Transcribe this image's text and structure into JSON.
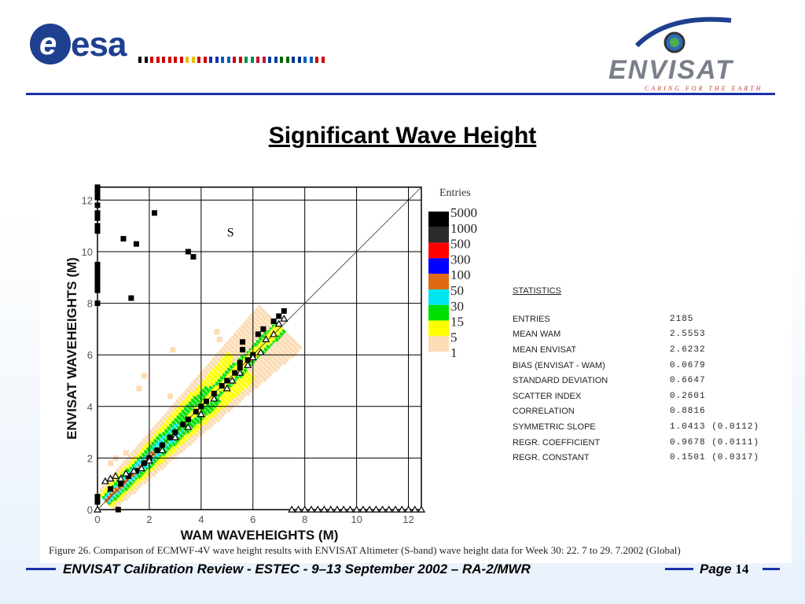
{
  "header": {
    "esa_logo_text": "esa",
    "envisat_logo_text": "ENVISAT",
    "envisat_tagline": "CARING FOR THE EARTH",
    "flags": [
      "#000000",
      "#d00000",
      "#d00000",
      "#d00000",
      "#e8c000",
      "#d00000",
      "#1a2fa8",
      "#0060c0",
      "#d00000",
      "#009246",
      "#c8102e",
      "#003da5",
      "#006600",
      "#003399",
      "#0060c0",
      "#d00000"
    ]
  },
  "title": "Significant Wave Height",
  "chart_data": {
    "type": "heatmap",
    "xlabel": "WAM  WAVEHEIGHTS (M)",
    "ylabel": "ENVISAT  WAVEHEIGHTS (M)",
    "xlim": [
      0,
      12.5
    ],
    "ylim": [
      0,
      12.5
    ],
    "xticks": [
      0,
      2,
      4,
      6,
      8,
      10,
      12
    ],
    "yticks": [
      0,
      2,
      4,
      6,
      8,
      10,
      12
    ],
    "grid": true,
    "annotation": "S",
    "legend_title": "Entries",
    "legend": [
      {
        "label": "5000",
        "color": "#000000"
      },
      {
        "label": "1000",
        "color": "#2b2b2b"
      },
      {
        "label": "500",
        "color": "#ff0000"
      },
      {
        "label": "300",
        "color": "#0000ff"
      },
      {
        "label": "100",
        "color": "#e06a10"
      },
      {
        "label": "50",
        "color": "#00e5f0"
      },
      {
        "label": "30",
        "color": "#00e000"
      },
      {
        "label": "15",
        "color": "#ffff00"
      },
      {
        "label": "5",
        "color": "#fbdcb4"
      },
      {
        "label": "1",
        "color": ""
      }
    ],
    "squares": [
      [
        0,
        12.5
      ],
      [
        0,
        12.3
      ],
      [
        0,
        12.1
      ],
      [
        0,
        11.8
      ],
      [
        0,
        11.5
      ],
      [
        0,
        11.3
      ],
      [
        0,
        11.0
      ],
      [
        0,
        10.8
      ],
      [
        0,
        9.5
      ],
      [
        0,
        9.3
      ],
      [
        0,
        9.1
      ],
      [
        0,
        8.9
      ],
      [
        0,
        8.7
      ],
      [
        0,
        8.5
      ],
      [
        0,
        8.0
      ],
      [
        2.2,
        11.5
      ],
      [
        1.0,
        10.5
      ],
      [
        1.5,
        10.3
      ],
      [
        3.5,
        10.0
      ],
      [
        3.7,
        9.8
      ],
      [
        1.3,
        8.2
      ],
      [
        0,
        0.5
      ],
      [
        0,
        0.3
      ],
      [
        0.8,
        0.0
      ],
      [
        0.5,
        0.8
      ],
      [
        0.9,
        1.0
      ],
      [
        1.2,
        1.3
      ],
      [
        1.5,
        1.5
      ],
      [
        1.8,
        1.8
      ],
      [
        2.0,
        2.0
      ],
      [
        2.3,
        2.3
      ],
      [
        2.5,
        2.5
      ],
      [
        2.8,
        2.8
      ],
      [
        3.0,
        3.0
      ],
      [
        3.3,
        3.3
      ],
      [
        3.5,
        3.5
      ],
      [
        3.8,
        3.8
      ],
      [
        4.0,
        4.0
      ],
      [
        4.2,
        4.2
      ],
      [
        4.5,
        4.5
      ],
      [
        4.8,
        4.8
      ],
      [
        5.0,
        5.0
      ],
      [
        5.3,
        5.3
      ],
      [
        5.5,
        5.5
      ],
      [
        5.8,
        5.8
      ],
      [
        6.0,
        6.0
      ],
      [
        5.5,
        5.7
      ],
      [
        5.6,
        6.2
      ],
      [
        5.6,
        6.5
      ],
      [
        6.2,
        6.8
      ],
      [
        6.4,
        7.0
      ],
      [
        6.8,
        7.3
      ],
      [
        7.0,
        7.5
      ],
      [
        7.2,
        7.7
      ]
    ],
    "triangles": [
      [
        0.3,
        1.1
      ],
      [
        0.5,
        1.2
      ],
      [
        0.7,
        1.3
      ],
      [
        0.9,
        1.2
      ],
      [
        1.1,
        1.4
      ],
      [
        1.4,
        1.5
      ],
      [
        1.7,
        1.6
      ],
      [
        2.0,
        1.9
      ],
      [
        2.5,
        2.3
      ],
      [
        3.0,
        2.8
      ],
      [
        3.5,
        3.2
      ],
      [
        4.0,
        3.7
      ],
      [
        4.5,
        4.3
      ],
      [
        5.0,
        4.7
      ],
      [
        5.2,
        5.0
      ],
      [
        5.5,
        5.3
      ],
      [
        5.8,
        5.6
      ],
      [
        6.0,
        5.9
      ],
      [
        6.3,
        6.1
      ],
      [
        6.5,
        6.6
      ],
      [
        6.8,
        6.8
      ],
      [
        7.0,
        7.2
      ],
      [
        7.2,
        7.4
      ],
      [
        0,
        0
      ],
      [
        7.5,
        0
      ],
      [
        7.75,
        0
      ],
      [
        8.0,
        0
      ],
      [
        8.25,
        0
      ],
      [
        8.5,
        0
      ],
      [
        8.75,
        0
      ],
      [
        9.0,
        0
      ],
      [
        9.25,
        0
      ],
      [
        9.5,
        0
      ],
      [
        9.75,
        0
      ],
      [
        10.0,
        0
      ],
      [
        10.25,
        0
      ],
      [
        10.5,
        0
      ],
      [
        10.75,
        0
      ],
      [
        11.0,
        0
      ],
      [
        11.25,
        0
      ],
      [
        11.5,
        0
      ],
      [
        11.75,
        0
      ],
      [
        12.0,
        0
      ],
      [
        12.25,
        0
      ],
      [
        12.5,
        0
      ]
    ]
  },
  "statistics": {
    "heading": "STATISTICS",
    "rows": [
      {
        "label": "ENTRIES",
        "value": "2185"
      },
      {
        "label": "MEAN WAM",
        "value": "2.5553"
      },
      {
        "label": "MEAN ENVISAT",
        "value": "2.6232"
      },
      {
        "label": "BIAS (ENVISAT - WAM)",
        "value": "0.0679"
      },
      {
        "label": "STANDARD DEVIATION",
        "value": "0.6647"
      },
      {
        "label": "SCATTER INDEX",
        "value": "0.2601"
      },
      {
        "label": "CORRELATION",
        "value": "0.8816"
      },
      {
        "label": "SYMMETRIC SLOPE",
        "value": "1.0413 (0.0112)"
      },
      {
        "label": "REGR. COEFFICIENT",
        "value": "0.9678 (0.0111)"
      },
      {
        "label": "REGR. CONSTANT",
        "value": "0.1501 (0.0317)"
      }
    ]
  },
  "caption": "Figure 26.   Comparison of ECMWF-4V wave height results with ENVISAT Altimeter (S-band) wave height data for Week 30: 22. 7 to 29. 7.2002 (Global)",
  "footer": {
    "text": "ENVISAT Calibration Review - ESTEC - 9–13 September 2002 – RA-2/MWR",
    "page_label": "Page",
    "page_number": "14"
  }
}
